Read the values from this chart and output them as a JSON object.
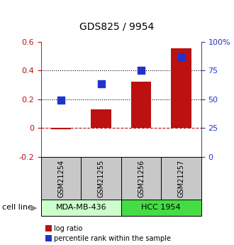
{
  "title": "GDS825 / 9954",
  "samples": [
    "GSM21254",
    "GSM21255",
    "GSM21256",
    "GSM21257"
  ],
  "log_ratio": [
    -0.01,
    0.13,
    0.32,
    0.555
  ],
  "percentile_rank": [
    0.49,
    0.635,
    0.75,
    0.87
  ],
  "ylim_left": [
    -0.2,
    0.6
  ],
  "ylim_right": [
    0.0,
    1.0
  ],
  "yticks_left": [
    -0.2,
    0.0,
    0.2,
    0.4,
    0.6
  ],
  "ytick_labels_left": [
    "-0.2",
    "0",
    "0.2",
    "0.4",
    "0.6"
  ],
  "yticks_right": [
    0.0,
    0.25,
    0.5,
    0.75,
    1.0
  ],
  "ytick_labels_right": [
    "0",
    "25",
    "50",
    "75",
    "100%"
  ],
  "dotted_lines": [
    0.2,
    0.4
  ],
  "dashed_line": 0.0,
  "bar_color": "#BB1111",
  "dot_color": "#2233CC",
  "cell_lines": [
    {
      "label": "MDA-MB-436",
      "samples": [
        0,
        1
      ],
      "color": "#CCFFCC"
    },
    {
      "label": "HCC 1954",
      "samples": [
        2,
        3
      ],
      "color": "#44DD44"
    }
  ],
  "sample_box_color": "#C8C8C8",
  "legend_items": [
    {
      "color": "#BB1111",
      "label": "log ratio"
    },
    {
      "color": "#2233CC",
      "label": "percentile rank within the sample"
    }
  ],
  "cell_line_label": "cell line",
  "bar_width": 0.5,
  "figsize": [
    3.3,
    3.45
  ],
  "dpi": 100
}
